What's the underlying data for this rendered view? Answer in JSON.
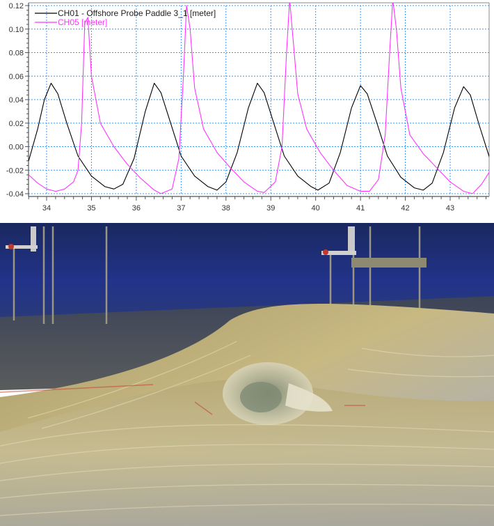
{
  "chart_data": {
    "type": "line",
    "title": "",
    "xlabel": "",
    "ylabel": "",
    "xlim": [
      33.6,
      43.9
    ],
    "ylim": [
      -0.041,
      0.122
    ],
    "x_ticks": [
      34,
      35,
      36,
      37,
      38,
      39,
      40,
      41,
      42,
      43
    ],
    "y_ticks": [
      -0.04,
      -0.02,
      0.0,
      0.02,
      0.04,
      0.06,
      0.08,
      0.1,
      0.12
    ],
    "x_tick_labels": [
      "34",
      "35",
      "36",
      "37",
      "38",
      "39",
      "40",
      "41",
      "42",
      "43"
    ],
    "y_tick_labels": [
      "-0.04",
      "-0.02",
      "0.00",
      "0.02",
      "0.04",
      "0.06",
      "0.08",
      "0.10",
      "0.12"
    ],
    "grid": true,
    "legend_position": "upper-left",
    "series": [
      {
        "name": "CH01 - Offshore Probe Paddle 3_1 [meter]",
        "color": "#000000",
        "x": [
          33.6,
          33.8,
          33.95,
          34.1,
          34.25,
          34.45,
          34.7,
          35.0,
          35.3,
          35.5,
          35.7,
          35.95,
          36.2,
          36.4,
          36.55,
          36.75,
          37.0,
          37.3,
          37.6,
          37.8,
          38.0,
          38.25,
          38.5,
          38.7,
          38.85,
          39.05,
          39.3,
          39.6,
          39.9,
          40.05,
          40.3,
          40.55,
          40.8,
          41.0,
          41.15,
          41.35,
          41.6,
          41.9,
          42.2,
          42.4,
          42.6,
          42.85,
          43.1,
          43.3,
          43.45,
          43.65,
          43.9
        ],
        "values": [
          -0.012,
          0.015,
          0.04,
          0.054,
          0.045,
          0.02,
          -0.008,
          -0.025,
          -0.034,
          -0.036,
          -0.032,
          -0.01,
          0.03,
          0.054,
          0.046,
          0.022,
          -0.008,
          -0.025,
          -0.034,
          -0.037,
          -0.03,
          -0.005,
          0.033,
          0.054,
          0.046,
          0.022,
          -0.008,
          -0.025,
          -0.034,
          -0.037,
          -0.031,
          -0.005,
          0.033,
          0.052,
          0.045,
          0.022,
          -0.008,
          -0.026,
          -0.035,
          -0.037,
          -0.031,
          -0.005,
          0.033,
          0.051,
          0.044,
          0.018,
          -0.012
        ]
      },
      {
        "name": "CH05 [meter]",
        "color": "#ff33ff",
        "x": [
          33.6,
          33.8,
          34.0,
          34.2,
          34.4,
          34.6,
          34.7,
          34.78,
          34.85,
          34.92,
          35.0,
          35.2,
          35.5,
          35.8,
          36.1,
          36.4,
          36.55,
          36.8,
          36.95,
          37.05,
          37.12,
          37.2,
          37.3,
          37.5,
          37.8,
          38.1,
          38.4,
          38.7,
          38.85,
          39.1,
          39.25,
          39.35,
          39.42,
          39.5,
          39.6,
          39.8,
          40.1,
          40.4,
          40.7,
          41.0,
          41.2,
          41.4,
          41.55,
          41.65,
          41.72,
          41.8,
          41.9,
          42.1,
          42.4,
          42.7,
          43.0,
          43.3,
          43.5,
          43.7,
          43.9
        ],
        "values": [
          -0.024,
          -0.031,
          -0.036,
          -0.038,
          -0.036,
          -0.03,
          -0.02,
          0.02,
          0.105,
          0.11,
          0.06,
          0.02,
          0.0,
          -0.015,
          -0.027,
          -0.037,
          -0.04,
          -0.036,
          -0.01,
          0.06,
          0.12,
          0.1,
          0.05,
          0.015,
          -0.005,
          -0.018,
          -0.03,
          -0.038,
          -0.039,
          -0.03,
          0.0,
          0.08,
          0.125,
          0.09,
          0.045,
          0.015,
          -0.005,
          -0.02,
          -0.033,
          -0.038,
          -0.038,
          -0.028,
          0.01,
          0.08,
          0.125,
          0.1,
          0.05,
          0.01,
          -0.006,
          -0.018,
          -0.03,
          -0.038,
          -0.04,
          -0.032,
          -0.02
        ]
      }
    ]
  },
  "legend": {
    "items": [
      {
        "label": "CH01 - Offshore Probe Paddle 3_1 [meter]",
        "color": "#000000"
      },
      {
        "label": "CH05 [meter]",
        "color": "#ff33ff"
      }
    ]
  },
  "colors": {
    "grid": "#3399ff",
    "axis": "#555555",
    "frame": "#888888"
  },
  "photo": {
    "description": "Laboratory wave flume photo showing a plunging breaking wave with probe rigs in background",
    "colors": {
      "wall_top": "#1b2a6b",
      "wall_mid": "#24348a",
      "water_far": "#3a4358",
      "water_gold": "#b8a66a",
      "water_light": "#cfc7a8",
      "water_silver": "#9aa0a8"
    }
  }
}
